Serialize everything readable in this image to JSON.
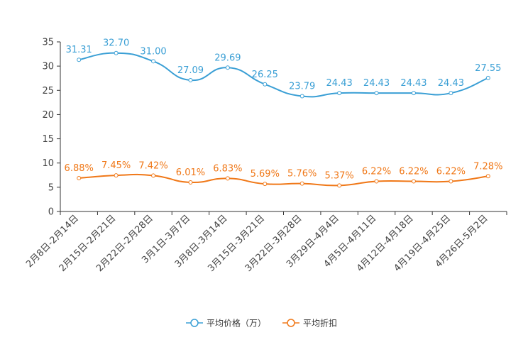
{
  "chart_data": {
    "type": "line",
    "title": "",
    "xlabel": "",
    "ylabel": "",
    "ylim": [
      0,
      35
    ],
    "yticks": [
      0,
      5,
      10,
      15,
      20,
      25,
      30,
      35
    ],
    "grid": false,
    "legend_position": "bottom-center",
    "categories": [
      "2月8日-2月14日",
      "2月15日-2月21日",
      "2月22日-2月28日",
      "3月1日-3月7日",
      "3月8日-3月14日",
      "3月15日-3月21日",
      "3月22日-3月28日",
      "3月29日-4月4日",
      "4月5日-4月11日",
      "4月12日-4月18日",
      "4月19日-4月25日",
      "4月26日-5月2日"
    ],
    "series": [
      {
        "name": "平均价格（万）",
        "color": "#3a9fd5",
        "values": [
          31.31,
          32.7,
          31.0,
          27.09,
          29.69,
          26.25,
          23.79,
          24.43,
          24.43,
          24.43,
          24.43,
          27.55
        ],
        "labels": [
          "31.31",
          "32.70",
          "31.00",
          "27.09",
          "29.69",
          "26.25",
          "23.79",
          "24.43",
          "24.43",
          "24.43",
          "24.43",
          "27.55"
        ]
      },
      {
        "name": "平均折扣",
        "color": "#f07818",
        "values": [
          6.88,
          7.45,
          7.42,
          6.01,
          6.83,
          5.69,
          5.76,
          5.37,
          6.22,
          6.22,
          6.22,
          7.28
        ],
        "labels": [
          "6.88%",
          "7.45%",
          "7.42%",
          "6.01%",
          "6.83%",
          "5.69%",
          "5.76%",
          "5.37%",
          "6.22%",
          "6.22%",
          "6.22%",
          "7.28%"
        ]
      }
    ]
  }
}
